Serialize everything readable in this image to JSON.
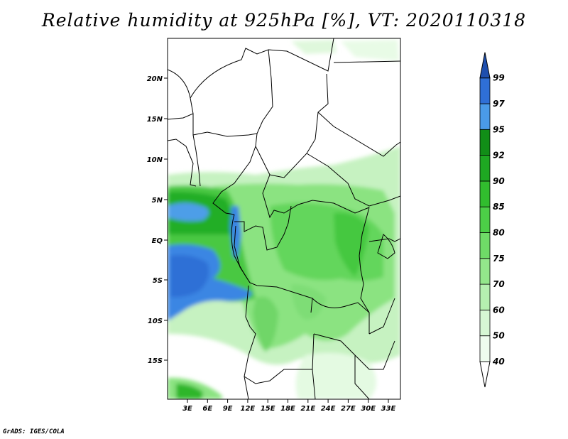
{
  "title": "Relative humidity at 925hPa [%], VT: 2020110318",
  "credit": "GrADS: IGES/COLA",
  "map": {
    "lat_ticks": [
      "20N",
      "15N",
      "10N",
      "5N",
      "EQ",
      "5S",
      "10S",
      "15S"
    ],
    "lon_ticks": [
      "3E",
      "6E",
      "9E",
      "12E",
      "15E",
      "18E",
      "21E",
      "24E",
      "27E",
      "30E",
      "33E"
    ]
  },
  "colorbar": {
    "levels": [
      "40",
      "50",
      "60",
      "70",
      "75",
      "80",
      "85",
      "90",
      "92",
      "95",
      "97",
      "99"
    ],
    "colors": [
      "#ffffff",
      "#eefcee",
      "#d6f7d4",
      "#b5efb0",
      "#93e68b",
      "#6fdb67",
      "#4ccf47",
      "#31bd2e",
      "#1ea822",
      "#118e17",
      "#4a9ae8",
      "#2f6fd6",
      "#1f4fae"
    ]
  }
}
